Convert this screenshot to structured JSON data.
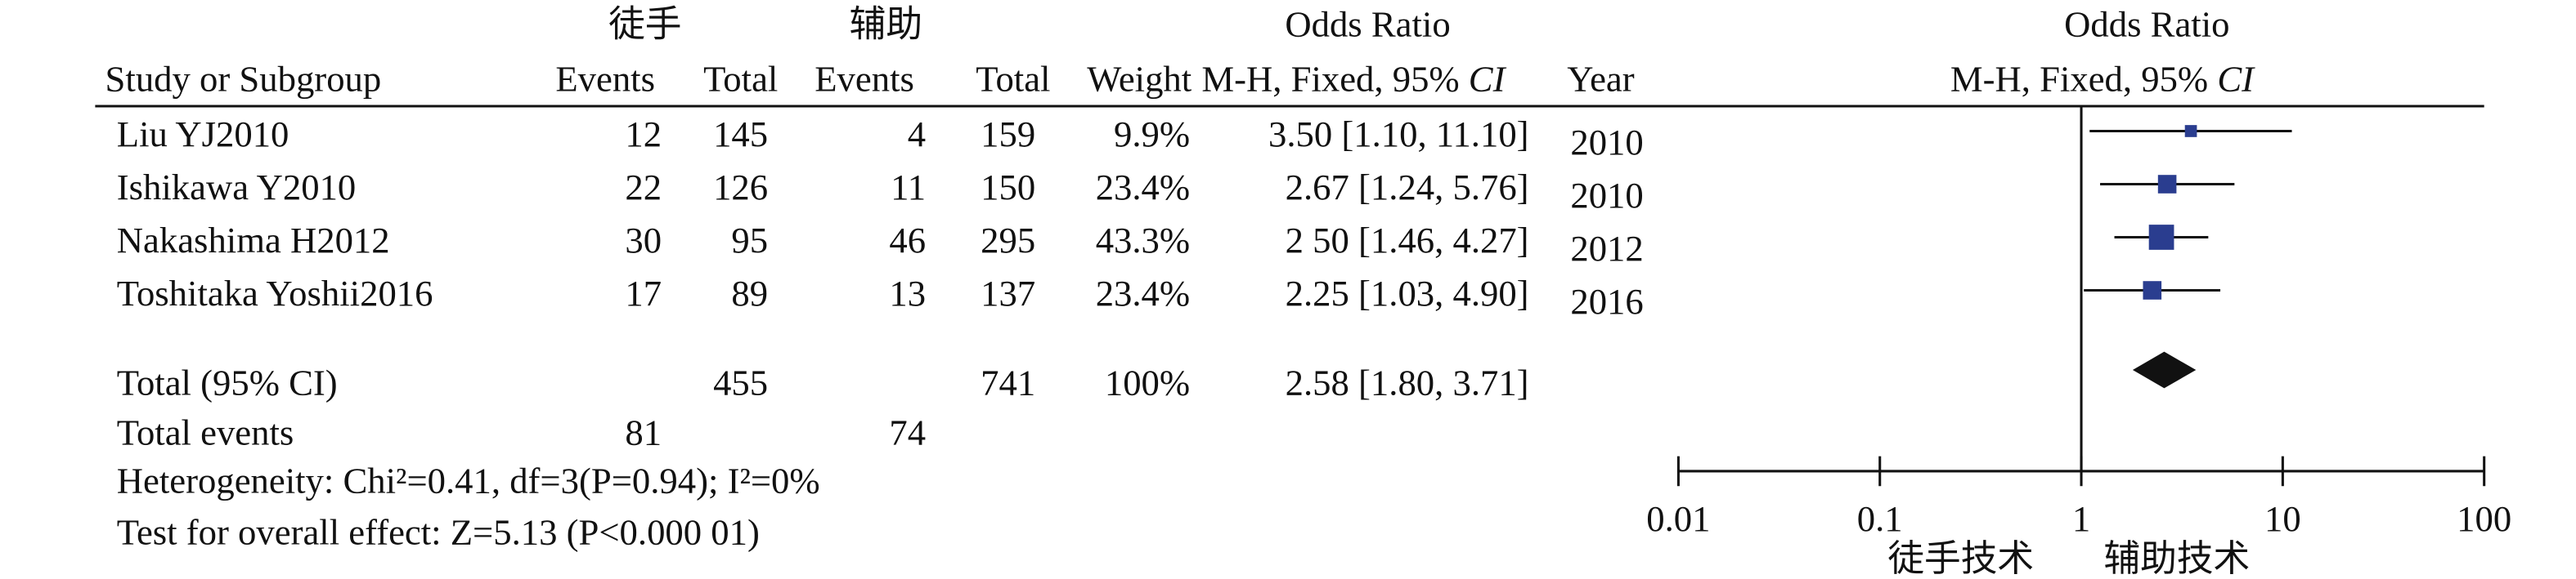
{
  "chart_data": {
    "type": "forest",
    "group_labels": [
      "徒手",
      "辅助"
    ],
    "table_title": "Odds Ratio",
    "plot_title": "Odds Ratio",
    "columns": {
      "study": "Study or Subgroup",
      "events1": "Events",
      "total1": "Total",
      "events2": "Events",
      "total2": "Total",
      "weight": "Weight",
      "method": "M-H, Fixed, 95% ",
      "method_ci": "CI",
      "year": "Year"
    },
    "plot_method": "M-H, Fixed, 95% ",
    "plot_method_ci": "CI",
    "studies": [
      {
        "name": "Liu YJ2010",
        "events1": 12,
        "total1": 145,
        "events2": 4,
        "total2": 159,
        "weight": 9.9,
        "weight_label": "9.9%",
        "or": 3.5,
        "ci_low": 1.1,
        "ci_high": 11.1,
        "or_label": "3.50 [1.10, 11.10]",
        "year": 2010
      },
      {
        "name": "Ishikawa Y2010",
        "events1": 22,
        "total1": 126,
        "events2": 11,
        "total2": 150,
        "weight": 23.4,
        "weight_label": "23.4%",
        "or": 2.67,
        "ci_low": 1.24,
        "ci_high": 5.76,
        "or_label": "2.67 [1.24, 5.76]",
        "year": 2010
      },
      {
        "name": "Nakashima H2012",
        "events1": 30,
        "total1": 95,
        "events2": 46,
        "total2": 295,
        "weight": 43.3,
        "weight_label": "43.3%",
        "or": 2.5,
        "ci_low": 1.46,
        "ci_high": 4.27,
        "or_label": "2 50 [1.46, 4.27]",
        "year": 2012
      },
      {
        "name": "Toshitaka Yoshii2016",
        "events1": 17,
        "total1": 89,
        "events2": 13,
        "total2": 137,
        "weight": 23.4,
        "weight_label": "23.4%",
        "or": 2.25,
        "ci_low": 1.03,
        "ci_high": 4.9,
        "or_label": "2.25 [1.03, 4.90]",
        "year": 2016
      }
    ],
    "total": {
      "name": "Total (95% CI)",
      "total1": 455,
      "total2": 741,
      "weight": 100,
      "weight_label": "100%",
      "or": 2.58,
      "ci_low": 1.8,
      "ci_high": 3.71,
      "or_label": "2.58 [1.80, 3.71]"
    },
    "total_events": {
      "label": "Total events",
      "events1": 81,
      "events2": 74
    },
    "heterogeneity": "Heterogeneity: Chi²=0.41, df=3(P=0.94); I²=0%",
    "overall_effect": "Test for overall effect: Z=5.13 (P<0.000 01)",
    "xscale": "log",
    "xlim": [
      0.01,
      100
    ],
    "xticks": [
      0.01,
      0.1,
      1,
      10,
      100
    ],
    "x_labels": [
      "徒手技术",
      "辅助技术"
    ],
    "color": "#2a3d8f"
  }
}
